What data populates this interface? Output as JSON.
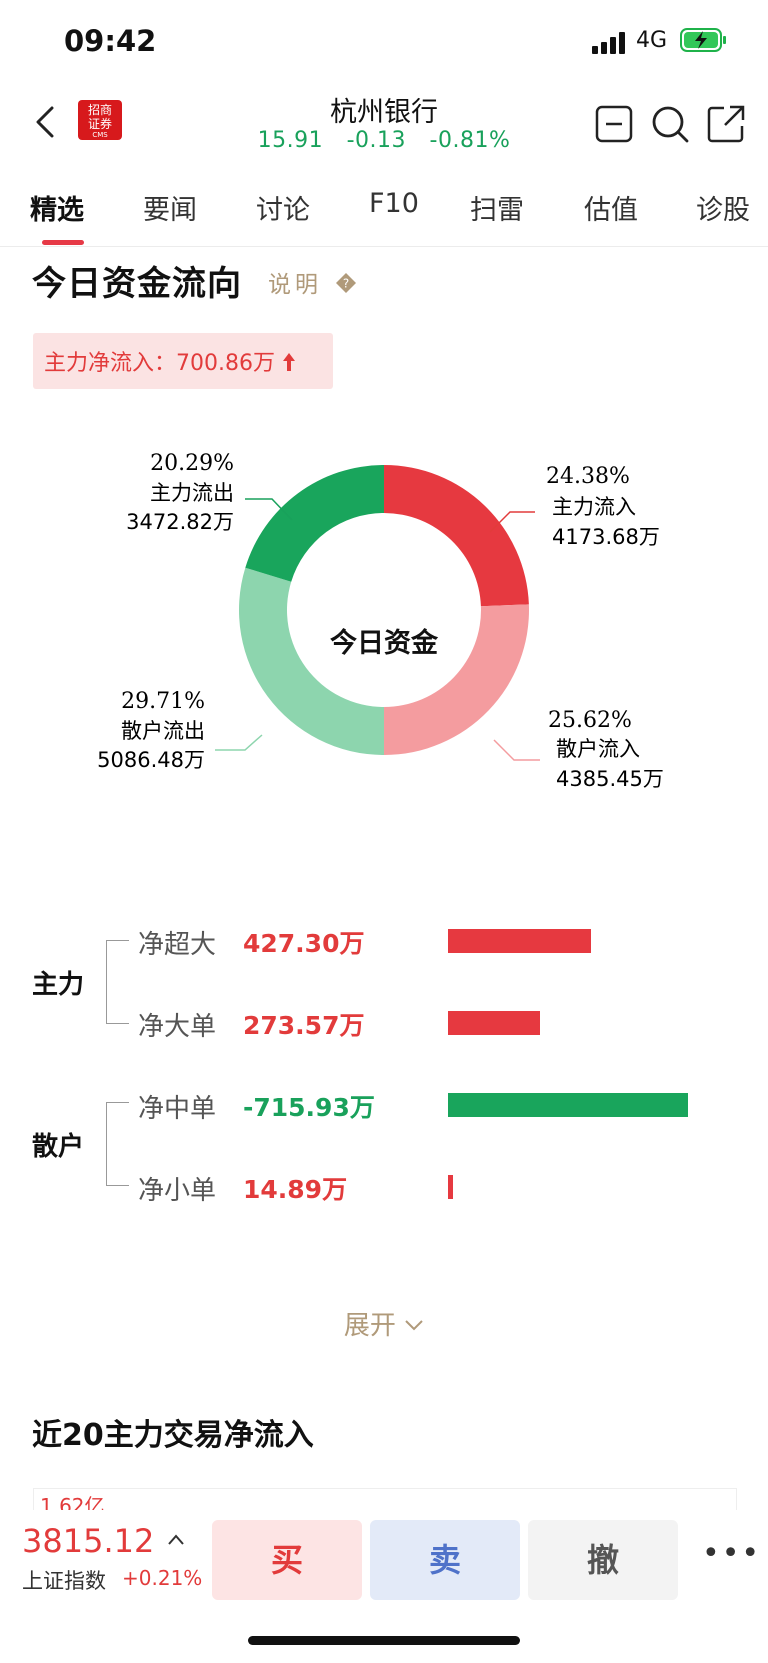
{
  "status_bar": {
    "time": "09:42",
    "network": "4G"
  },
  "header": {
    "stock_name": "杭州银行",
    "price": "15.91",
    "change": "-0.13",
    "change_pct": "-0.81%",
    "logo_line1": "招商",
    "logo_line2": "证券",
    "logo_line3": "CMS"
  },
  "tabs": [
    "精选",
    "要闻",
    "讨论",
    "F10",
    "扫雷",
    "估值",
    "诊股"
  ],
  "fund_flow": {
    "title": "今日资金流向",
    "explain": "说明",
    "main_net_inflow": "主力净流入：700.86万",
    "donut_center": "今日资金",
    "segments": {
      "main_in": {
        "pct": "24.38%",
        "label": "主力流入",
        "amount": "4173.68万",
        "value": 24.38,
        "color": "#e63940"
      },
      "retail_in": {
        "pct": "25.62%",
        "label": "散户流入",
        "amount": "4385.45万",
        "value": 25.62,
        "color": "#f49c9f"
      },
      "retail_out": {
        "pct": "29.71%",
        "label": "散户流出",
        "amount": "5086.48万",
        "value": 29.71,
        "color": "#8dd5ae"
      },
      "main_out": {
        "pct": "20.29%",
        "label": "主力流出",
        "amount": "3472.82万",
        "value": 20.29,
        "color": "#19a55c"
      }
    }
  },
  "net_flow": {
    "group_main": "主力",
    "group_retail": "散户",
    "rows": [
      {
        "name": "净超大",
        "value": "427.30万",
        "amount": 427.3,
        "color": "#e63940"
      },
      {
        "name": "净大单",
        "value": "273.57万",
        "amount": 273.57,
        "color": "#e63940"
      },
      {
        "name": "净中单",
        "value": "-715.93万",
        "amount": -715.93,
        "color": "#19a55c"
      },
      {
        "name": "净小单",
        "value": "14.89万",
        "amount": 14.89,
        "color": "#e63940"
      }
    ]
  },
  "expand_label": "展开",
  "recent": {
    "title": "近20主力交易净流入",
    "axis_top": "1.62亿"
  },
  "bottom_bar": {
    "index_value": "3815.12",
    "index_name": "上证指数",
    "index_change": "+0.21%",
    "buy": "买",
    "sell": "卖",
    "cancel": "撤",
    "more": "•••"
  }
}
